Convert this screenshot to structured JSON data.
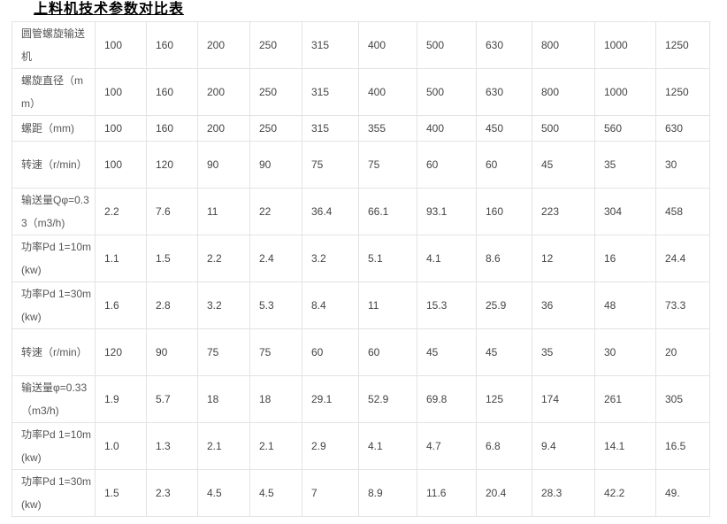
{
  "title": "上料机技术参数对比表",
  "rows": [
    {
      "label": "圆管螺旋输送机",
      "values": [
        "100",
        "160",
        "200",
        "250",
        "315",
        "400",
        "500",
        "630",
        "800",
        "1000",
        "1250"
      ]
    },
    {
      "label": "螺旋直径（mm）",
      "values": [
        "100",
        "160",
        "200",
        "250",
        "315",
        "400",
        "500",
        "630",
        "800",
        "1000",
        "1250"
      ]
    },
    {
      "label": "螺距（mm)",
      "values": [
        "100",
        "160",
        "200",
        "250",
        "315",
        "355",
        "400",
        "450",
        "500",
        "560",
        "630"
      ]
    },
    {
      "label": "转速（r/min）",
      "values": [
        "100",
        "120",
        "90",
        "90",
        "75",
        "75",
        "60",
        "60",
        "45",
        "35",
        "30"
      ]
    },
    {
      "label": "输送量Qφ=0.33（m3/h)",
      "values": [
        "2.2",
        "7.6",
        "11",
        "22",
        "36.4",
        "66.1",
        "93.1",
        "160",
        "223",
        "304",
        "458"
      ]
    },
    {
      "label": "功率Pd 1=10m(kw)",
      "values": [
        "1.1",
        "1.5",
        "2.2",
        "2.4",
        "3.2",
        "5.1",
        "4.1",
        "8.6",
        "12",
        "16",
        "24.4"
      ]
    },
    {
      "label": "功率Pd 1=30m(kw)",
      "values": [
        "1.6",
        "2.8",
        "3.2",
        "5.3",
        "8.4",
        "11",
        "15.3",
        "25.9",
        "36",
        "48",
        "73.3"
      ]
    },
    {
      "label": "转速（r/min）",
      "values": [
        "120",
        "90",
        "75",
        "75",
        "60",
        "60",
        "45",
        "45",
        "35",
        "30",
        "20"
      ]
    },
    {
      "label": "输送量φ=0.33（m3/h)",
      "values": [
        "1.9",
        "5.7",
        "18",
        "18",
        "29.1",
        "52.9",
        "69.8",
        "125",
        "174",
        "261",
        "305"
      ]
    },
    {
      "label": "功率Pd 1=10m(kw)",
      "values": [
        "1.0",
        "1.3",
        "2.1",
        "2.1",
        "2.9",
        "4.1",
        "4.7",
        "6.8",
        "9.4",
        "14.1",
        "16.5"
      ]
    },
    {
      "label": "功率Pd 1=30m(kw)",
      "values": [
        "1.5",
        "2.3",
        "4.5",
        "4.5",
        "7",
        "8.9",
        "11.6",
        "20.4",
        "28.3",
        "42.2",
        "49."
      ]
    }
  ]
}
